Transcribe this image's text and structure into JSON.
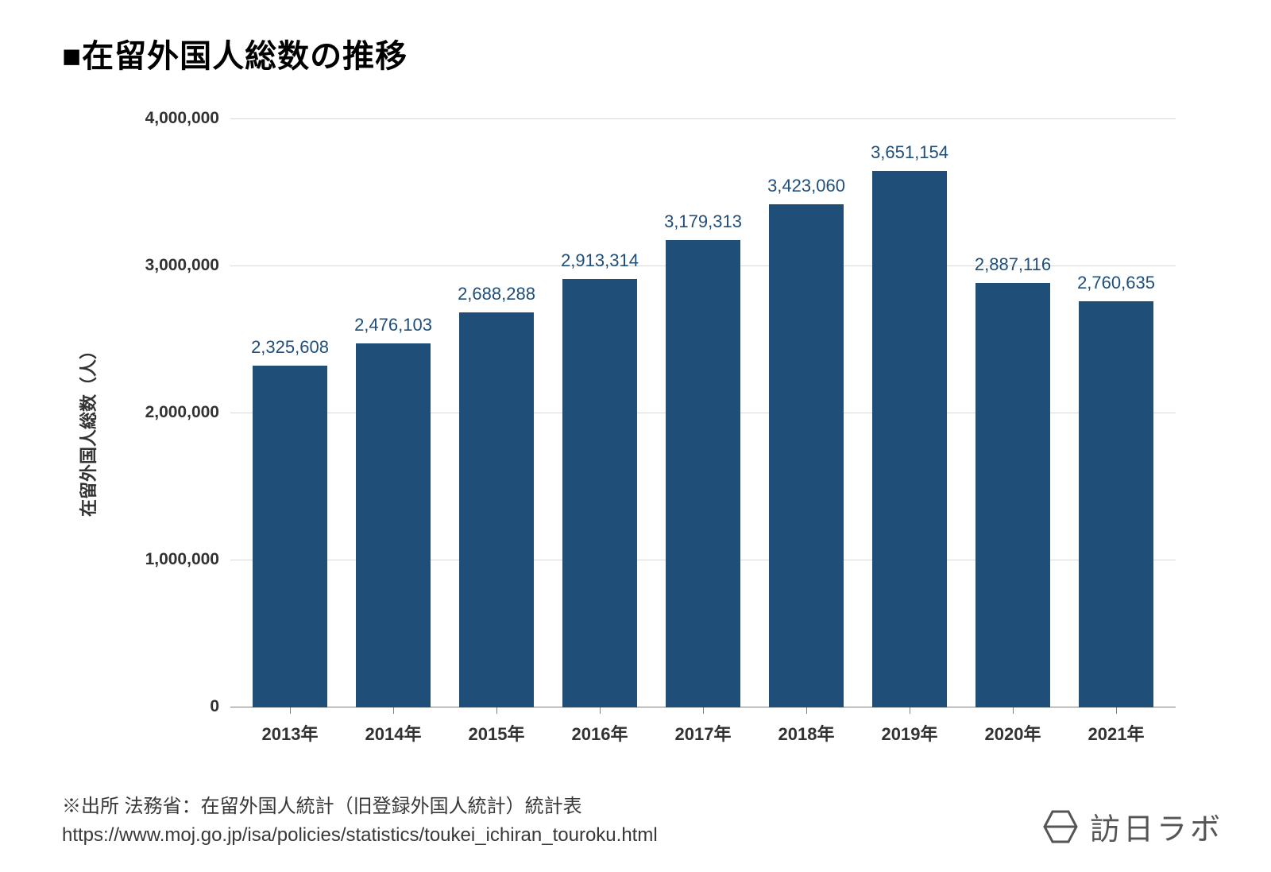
{
  "title": "■在留外国人総数の推移",
  "chart": {
    "type": "bar",
    "ylabel": "在留外国人総数（人）",
    "ylim": [
      0,
      4000000
    ],
    "ytick_step": 1000000,
    "ytick_labels": [
      "0",
      "1,000,000",
      "2,000,000",
      "3,000,000",
      "4,000,000"
    ],
    "categories": [
      "2013年",
      "2014年",
      "2015年",
      "2016年",
      "2017年",
      "2018年",
      "2019年",
      "2020年",
      "2021年"
    ],
    "values": [
      2325608,
      2476103,
      2688288,
      2913314,
      3179313,
      3423060,
      3651154,
      2887116,
      2760635
    ],
    "value_labels": [
      "2,325,608",
      "2,476,103",
      "2,688,288",
      "2,913,314",
      "3,179,313",
      "3,423,060",
      "3,651,154",
      "2,887,116",
      "2,760,635"
    ],
    "bar_color": "#1f4e79",
    "value_label_color": "#1f4e79",
    "grid_color": "#d9d9d9",
    "axis_color": "#7f7f7f",
    "tick_color": "#323232",
    "background_color": "#ffffff",
    "bar_width": 0.72,
    "title_fontsize": 40,
    "label_fontsize": 22,
    "tick_fontsize": 22
  },
  "footer": {
    "line1": "※出所 法務省：在留外国人統計（旧登録外国人統計）統計表",
    "line2": "https://www.moj.go.jp/isa/policies/statistics/toukei_ichiran_touroku.html"
  },
  "logo": {
    "text": "訪日ラボ"
  }
}
